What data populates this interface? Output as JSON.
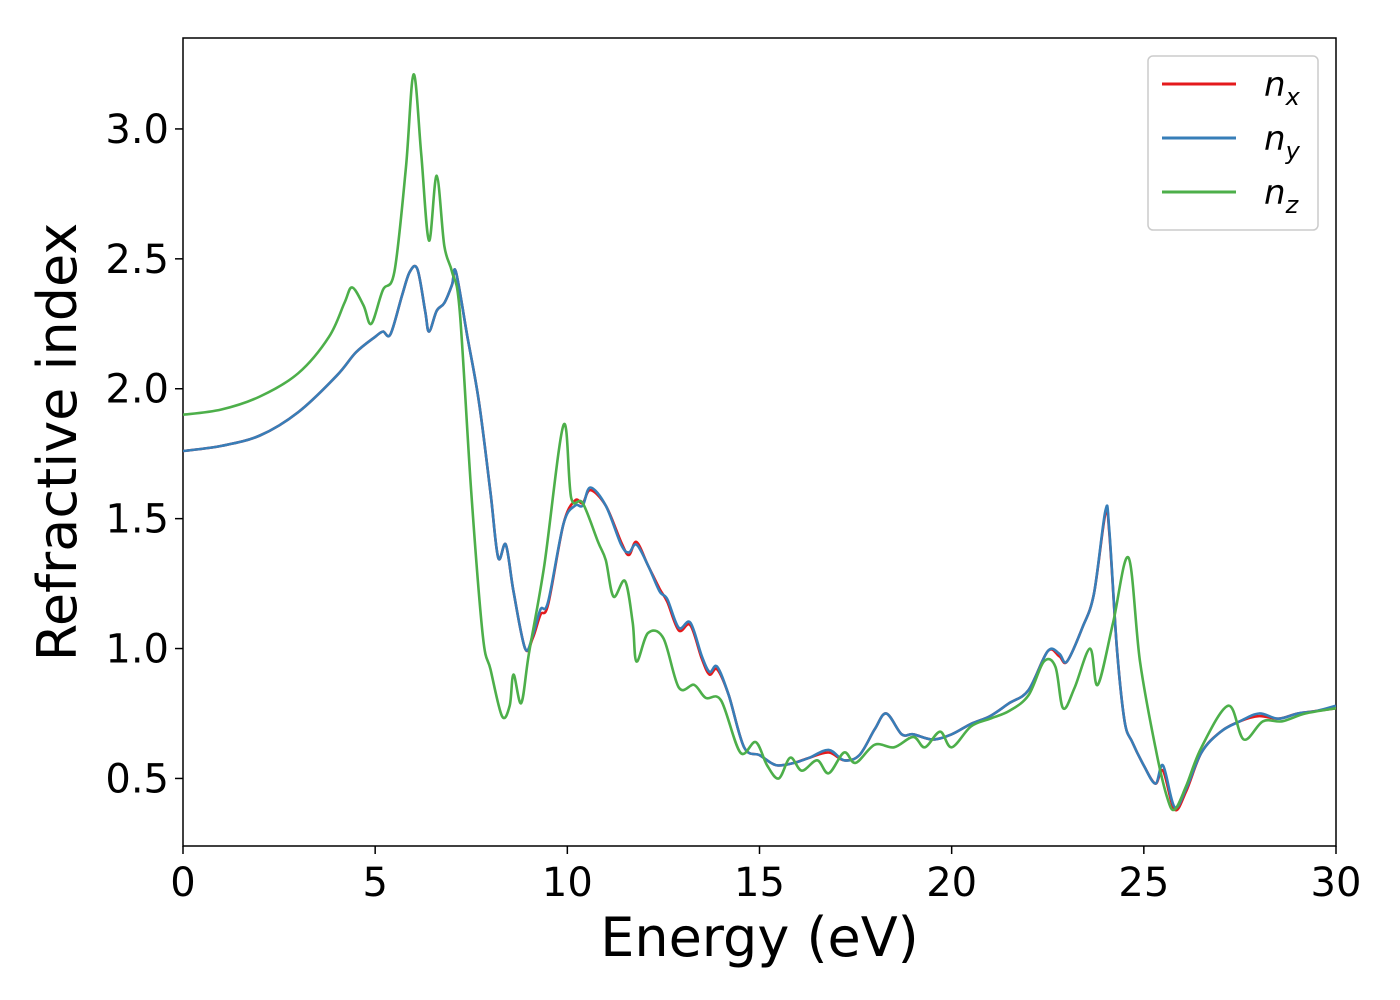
{
  "chart_data": {
    "type": "line",
    "xlabel": "Energy (eV)",
    "ylabel": "Refractive index",
    "xlim": [
      0,
      30
    ],
    "ylim": [
      0.24,
      3.35
    ],
    "x_ticks": [
      "0",
      "5",
      "10",
      "15",
      "20",
      "25",
      "30"
    ],
    "y_ticks": [
      "0.5",
      "1.0",
      "1.5",
      "2.0",
      "2.5",
      "3.0"
    ],
    "legend_position": "top-right",
    "grid": false,
    "series": [
      {
        "name": "n",
        "subscript": "x",
        "color": "#e41a1c",
        "points": [
          [
            0,
            1.76
          ],
          [
            1,
            1.78
          ],
          [
            2,
            1.82
          ],
          [
            3,
            1.91
          ],
          [
            4,
            2.05
          ],
          [
            4.5,
            2.14
          ],
          [
            5,
            2.2
          ],
          [
            5.2,
            2.22
          ],
          [
            5.4,
            2.21
          ],
          [
            5.7,
            2.36
          ],
          [
            5.9,
            2.45
          ],
          [
            6.1,
            2.46
          ],
          [
            6.3,
            2.3
          ],
          [
            6.4,
            2.22
          ],
          [
            6.6,
            2.3
          ],
          [
            6.8,
            2.33
          ],
          [
            7.0,
            2.4
          ],
          [
            7.1,
            2.45
          ],
          [
            7.4,
            2.2
          ],
          [
            7.7,
            1.95
          ],
          [
            8.0,
            1.6
          ],
          [
            8.2,
            1.35
          ],
          [
            8.4,
            1.4
          ],
          [
            8.6,
            1.22
          ],
          [
            8.9,
            1.0
          ],
          [
            9.1,
            1.04
          ],
          [
            9.3,
            1.13
          ],
          [
            9.5,
            1.17
          ],
          [
            9.9,
            1.48
          ],
          [
            10.2,
            1.57
          ],
          [
            10.4,
            1.56
          ],
          [
            10.6,
            1.61
          ],
          [
            11.0,
            1.55
          ],
          [
            11.4,
            1.41
          ],
          [
            11.6,
            1.36
          ],
          [
            11.8,
            1.41
          ],
          [
            12.1,
            1.32
          ],
          [
            12.4,
            1.23
          ],
          [
            12.6,
            1.18
          ],
          [
            12.9,
            1.07
          ],
          [
            13.2,
            1.09
          ],
          [
            13.5,
            0.96
          ],
          [
            13.7,
            0.9
          ],
          [
            13.9,
            0.92
          ],
          [
            14.2,
            0.82
          ],
          [
            14.6,
            0.62
          ],
          [
            15.0,
            0.59
          ],
          [
            15.3,
            0.56
          ],
          [
            15.5,
            0.55
          ],
          [
            15.9,
            0.56
          ],
          [
            16.3,
            0.58
          ],
          [
            16.8,
            0.6
          ],
          [
            17.2,
            0.57
          ],
          [
            17.6,
            0.59
          ],
          [
            18.0,
            0.69
          ],
          [
            18.3,
            0.75
          ],
          [
            18.7,
            0.67
          ],
          [
            19.0,
            0.67
          ],
          [
            19.5,
            0.65
          ],
          [
            20.0,
            0.67
          ],
          [
            20.5,
            0.71
          ],
          [
            21.0,
            0.74
          ],
          [
            21.5,
            0.79
          ],
          [
            22.0,
            0.84
          ],
          [
            22.5,
            0.99
          ],
          [
            22.8,
            0.97
          ],
          [
            23.0,
            0.95
          ],
          [
            23.4,
            1.08
          ],
          [
            23.7,
            1.21
          ],
          [
            24.0,
            1.52
          ],
          [
            24.1,
            1.45
          ],
          [
            24.3,
            1.0
          ],
          [
            24.5,
            0.72
          ],
          [
            24.7,
            0.64
          ],
          [
            25.0,
            0.55
          ],
          [
            25.3,
            0.48
          ],
          [
            25.5,
            0.53
          ],
          [
            25.8,
            0.38
          ],
          [
            26.1,
            0.45
          ],
          [
            26.5,
            0.6
          ],
          [
            27.0,
            0.68
          ],
          [
            27.5,
            0.72
          ],
          [
            28.0,
            0.74
          ],
          [
            28.5,
            0.73
          ],
          [
            29.0,
            0.75
          ],
          [
            29.5,
            0.76
          ],
          [
            30.0,
            0.77
          ]
        ]
      },
      {
        "name": "n",
        "subscript": "y",
        "color": "#377eb8",
        "points": [
          [
            0,
            1.76
          ],
          [
            1,
            1.78
          ],
          [
            2,
            1.82
          ],
          [
            3,
            1.91
          ],
          [
            4,
            2.05
          ],
          [
            4.5,
            2.14
          ],
          [
            5,
            2.2
          ],
          [
            5.2,
            2.22
          ],
          [
            5.4,
            2.21
          ],
          [
            5.7,
            2.36
          ],
          [
            5.9,
            2.45
          ],
          [
            6.1,
            2.46
          ],
          [
            6.3,
            2.3
          ],
          [
            6.4,
            2.22
          ],
          [
            6.6,
            2.3
          ],
          [
            6.8,
            2.33
          ],
          [
            7.0,
            2.4
          ],
          [
            7.1,
            2.45
          ],
          [
            7.4,
            2.2
          ],
          [
            7.7,
            1.95
          ],
          [
            8.0,
            1.6
          ],
          [
            8.2,
            1.35
          ],
          [
            8.4,
            1.4
          ],
          [
            8.6,
            1.22
          ],
          [
            8.9,
            1.0
          ],
          [
            9.1,
            1.05
          ],
          [
            9.3,
            1.15
          ],
          [
            9.5,
            1.18
          ],
          [
            9.9,
            1.48
          ],
          [
            10.2,
            1.55
          ],
          [
            10.4,
            1.55
          ],
          [
            10.6,
            1.62
          ],
          [
            11.0,
            1.55
          ],
          [
            11.4,
            1.4
          ],
          [
            11.6,
            1.37
          ],
          [
            11.8,
            1.4
          ],
          [
            12.1,
            1.32
          ],
          [
            12.4,
            1.22
          ],
          [
            12.6,
            1.19
          ],
          [
            12.9,
            1.08
          ],
          [
            13.2,
            1.1
          ],
          [
            13.5,
            0.97
          ],
          [
            13.7,
            0.91
          ],
          [
            13.9,
            0.93
          ],
          [
            14.2,
            0.82
          ],
          [
            14.6,
            0.62
          ],
          [
            15.0,
            0.59
          ],
          [
            15.3,
            0.56
          ],
          [
            15.5,
            0.55
          ],
          [
            15.9,
            0.56
          ],
          [
            16.3,
            0.58
          ],
          [
            16.8,
            0.61
          ],
          [
            17.2,
            0.57
          ],
          [
            17.6,
            0.59
          ],
          [
            18.0,
            0.69
          ],
          [
            18.3,
            0.75
          ],
          [
            18.7,
            0.67
          ],
          [
            19.0,
            0.67
          ],
          [
            19.5,
            0.65
          ],
          [
            20.0,
            0.67
          ],
          [
            20.5,
            0.71
          ],
          [
            21.0,
            0.74
          ],
          [
            21.5,
            0.79
          ],
          [
            22.0,
            0.84
          ],
          [
            22.5,
            0.99
          ],
          [
            22.8,
            0.98
          ],
          [
            23.0,
            0.95
          ],
          [
            23.4,
            1.08
          ],
          [
            23.7,
            1.21
          ],
          [
            24.0,
            1.53
          ],
          [
            24.1,
            1.46
          ],
          [
            24.3,
            1.0
          ],
          [
            24.5,
            0.72
          ],
          [
            24.7,
            0.64
          ],
          [
            25.0,
            0.55
          ],
          [
            25.3,
            0.48
          ],
          [
            25.5,
            0.55
          ],
          [
            25.8,
            0.39
          ],
          [
            26.1,
            0.46
          ],
          [
            26.5,
            0.6
          ],
          [
            27.0,
            0.68
          ],
          [
            27.5,
            0.72
          ],
          [
            28.0,
            0.75
          ],
          [
            28.5,
            0.73
          ],
          [
            29.0,
            0.75
          ],
          [
            29.5,
            0.76
          ],
          [
            30.0,
            0.78
          ]
        ]
      },
      {
        "name": "n",
        "subscript": "z",
        "color": "#4daf4a",
        "points": [
          [
            0,
            1.9
          ],
          [
            1,
            1.92
          ],
          [
            2,
            1.97
          ],
          [
            3,
            2.06
          ],
          [
            3.8,
            2.2
          ],
          [
            4.2,
            2.33
          ],
          [
            4.4,
            2.39
          ],
          [
            4.7,
            2.32
          ],
          [
            4.9,
            2.25
          ],
          [
            5.2,
            2.38
          ],
          [
            5.5,
            2.45
          ],
          [
            5.8,
            2.85
          ],
          [
            6.0,
            3.21
          ],
          [
            6.2,
            2.9
          ],
          [
            6.4,
            2.57
          ],
          [
            6.6,
            2.82
          ],
          [
            6.8,
            2.55
          ],
          [
            7.0,
            2.45
          ],
          [
            7.2,
            2.3
          ],
          [
            7.5,
            1.6
          ],
          [
            7.8,
            1.05
          ],
          [
            8.0,
            0.92
          ],
          [
            8.3,
            0.74
          ],
          [
            8.5,
            0.78
          ],
          [
            8.6,
            0.9
          ],
          [
            8.8,
            0.79
          ],
          [
            9.0,
            0.98
          ],
          [
            9.4,
            1.32
          ],
          [
            9.9,
            1.86
          ],
          [
            10.1,
            1.58
          ],
          [
            10.4,
            1.56
          ],
          [
            10.8,
            1.41
          ],
          [
            11.0,
            1.34
          ],
          [
            11.2,
            1.2
          ],
          [
            11.5,
            1.26
          ],
          [
            11.7,
            1.1
          ],
          [
            11.8,
            0.95
          ],
          [
            12.1,
            1.06
          ],
          [
            12.5,
            1.04
          ],
          [
            12.9,
            0.85
          ],
          [
            13.3,
            0.86
          ],
          [
            13.6,
            0.81
          ],
          [
            14.0,
            0.8
          ],
          [
            14.5,
            0.6
          ],
          [
            14.9,
            0.64
          ],
          [
            15.2,
            0.55
          ],
          [
            15.5,
            0.5
          ],
          [
            15.8,
            0.58
          ],
          [
            16.1,
            0.53
          ],
          [
            16.5,
            0.57
          ],
          [
            16.8,
            0.52
          ],
          [
            17.2,
            0.6
          ],
          [
            17.5,
            0.56
          ],
          [
            18.0,
            0.63
          ],
          [
            18.5,
            0.62
          ],
          [
            19.0,
            0.66
          ],
          [
            19.3,
            0.62
          ],
          [
            19.7,
            0.68
          ],
          [
            20.0,
            0.62
          ],
          [
            20.5,
            0.7
          ],
          [
            21.0,
            0.73
          ],
          [
            21.5,
            0.76
          ],
          [
            22.0,
            0.82
          ],
          [
            22.4,
            0.95
          ],
          [
            22.7,
            0.93
          ],
          [
            22.9,
            0.77
          ],
          [
            23.2,
            0.85
          ],
          [
            23.6,
            1.0
          ],
          [
            23.8,
            0.86
          ],
          [
            24.2,
            1.1
          ],
          [
            24.6,
            1.35
          ],
          [
            24.9,
            0.95
          ],
          [
            25.3,
            0.62
          ],
          [
            25.6,
            0.43
          ],
          [
            25.8,
            0.38
          ],
          [
            26.1,
            0.47
          ],
          [
            26.5,
            0.62
          ],
          [
            27.2,
            0.78
          ],
          [
            27.6,
            0.65
          ],
          [
            28.1,
            0.72
          ],
          [
            28.6,
            0.72
          ],
          [
            29.2,
            0.75
          ],
          [
            30.0,
            0.77
          ]
        ]
      }
    ]
  }
}
